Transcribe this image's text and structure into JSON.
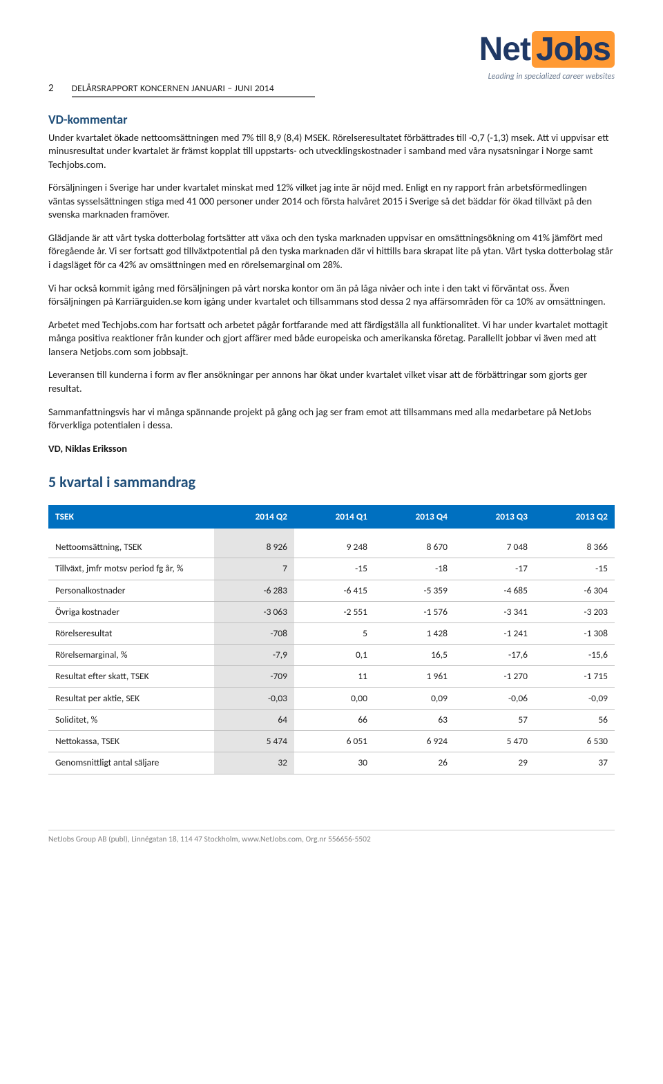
{
  "header": {
    "page_number": "2",
    "report_line": "DELÅRSRAPPORT KONCERNEN JANUARI – JUNI 2014",
    "logo_text_prefix": "Net",
    "logo_text_suffix": "Jobs",
    "logo_tagline": "Leading in specialized career websites"
  },
  "commentary": {
    "heading": "VD-kommentar",
    "paragraphs": [
      "Under kvartalet ökade nettoomsättningen med 7% till 8,9 (8,4) MSEK.  Rörelseresultatet förbättrades till -0,7 (-1,3) msek. Att vi uppvisar ett minusresultat under kvartalet är främst kopplat till uppstarts- och utvecklingskostnader i samband med våra nysatsningar i Norge samt Techjobs.com.",
      "Försäljningen i Sverige har under kvartalet minskat med 12% vilket jag inte är nöjd med. Enligt en ny rapport från arbetsförmedlingen väntas sysselsättningen stiga med 41 000 personer under 2014 och första halvåret 2015 i Sverige så det bäddar för ökad tillväxt på den svenska marknaden framöver.",
      "Glädjande är att vårt tyska dotterbolag fortsätter att växa och den tyska marknaden uppvisar en omsättningsökning om 41% jämfört med föregående år. Vi ser fortsatt god tillväxtpotential på den tyska marknaden där vi hittills bara skrapat lite på ytan. Vårt tyska dotterbolag står i dagsläget för ca 42% av omsättningen med en rörelsemarginal om 28%.",
      "Vi har också kommit igång med försäljningen på vårt norska kontor om än på låga nivåer och inte i den takt vi förväntat oss. Även försäljningen på Karriärguiden.se kom igång under kvartalet och tillsammans stod dessa 2 nya affärsområden för ca 10% av omsättningen.",
      "Arbetet med Techjobs.com har fortsatt och arbetet pågår fortfarande med att färdigställa all funktionalitet. Vi har under kvartalet mottagit många positiva reaktioner från kunder och gjort affärer med både europeiska och amerikanska företag. Parallellt jobbar vi även med att lansera Netjobs.com som jobbsajt.",
      "Leveransen till kunderna i form av fler ansökningar per annons har ökat under kvartalet vilket visar att de förbättringar som gjorts ger resultat.",
      "Sammanfattningsvis har vi många spännande projekt på gång och jag ser fram emot att tillsammans med alla medarbetare på NetJobs förverkliga potentialen i dessa."
    ],
    "signoff": "VD, Niklas Eriksson"
  },
  "summary": {
    "heading": "5 kvartal i sammandrag",
    "table": {
      "header_label": "TSEK",
      "columns": [
        "2014 Q2",
        "2014 Q1",
        "2013 Q4",
        "2013 Q3",
        "2013 Q2"
      ],
      "highlight_col": 0,
      "rows": [
        {
          "label": "Nettoomsättning, TSEK",
          "cells": [
            "8 926",
            "9 248",
            "8 670",
            "7 048",
            "8 366"
          ]
        },
        {
          "label": "Tillväxt, jmfr motsv period fg år, %",
          "cells": [
            "7",
            "-15",
            "-18",
            "-17",
            "-15"
          ]
        },
        {
          "label": "Personalkostnader",
          "cells": [
            "-6 283",
            "-6 415",
            "-5 359",
            "-4 685",
            "-6 304"
          ]
        },
        {
          "label": "Övriga kostnader",
          "cells": [
            "-3 063",
            "-2 551",
            "-1 576",
            "-3 341",
            "-3 203"
          ]
        },
        {
          "label": "Rörelseresultat",
          "cells": [
            "-708",
            "5",
            "1 428",
            "-1 241",
            "-1 308"
          ]
        },
        {
          "label": "Rörelsemarginal, %",
          "cells": [
            "-7,9",
            "0,1",
            "16,5",
            "-17,6",
            "-15,6"
          ]
        },
        {
          "label": "Resultat efter skatt, TSEK",
          "cells": [
            "-709",
            "11",
            "1 961",
            "-1 270",
            "-1 715"
          ]
        },
        {
          "label": "Resultat per aktie, SEK",
          "cells": [
            "-0,03",
            "0,00",
            "0,09",
            "-0,06",
            "-0,09"
          ]
        },
        {
          "label": "Soliditet, %",
          "cells": [
            "64",
            "66",
            "63",
            "57",
            "56"
          ]
        },
        {
          "label": "Nettokassa, TSEK",
          "cells": [
            "5 474",
            "6 051",
            "6 924",
            "5 470",
            "6 530"
          ]
        },
        {
          "label": "Genomsnittligt antal säljare",
          "cells": [
            "32",
            "30",
            "26",
            "29",
            "37"
          ]
        }
      ],
      "colors": {
        "header_bg": "#0070c0",
        "header_fg": "#ffffff",
        "highlight_bg": "#e4e4e4",
        "row_border": "#bfbfbf"
      }
    }
  },
  "footer": {
    "text": "NetJobs Group AB (publ), Linnégatan 18, 114 47 Stockholm, www.NetJobs.com, Org.nr 556656-5502"
  }
}
